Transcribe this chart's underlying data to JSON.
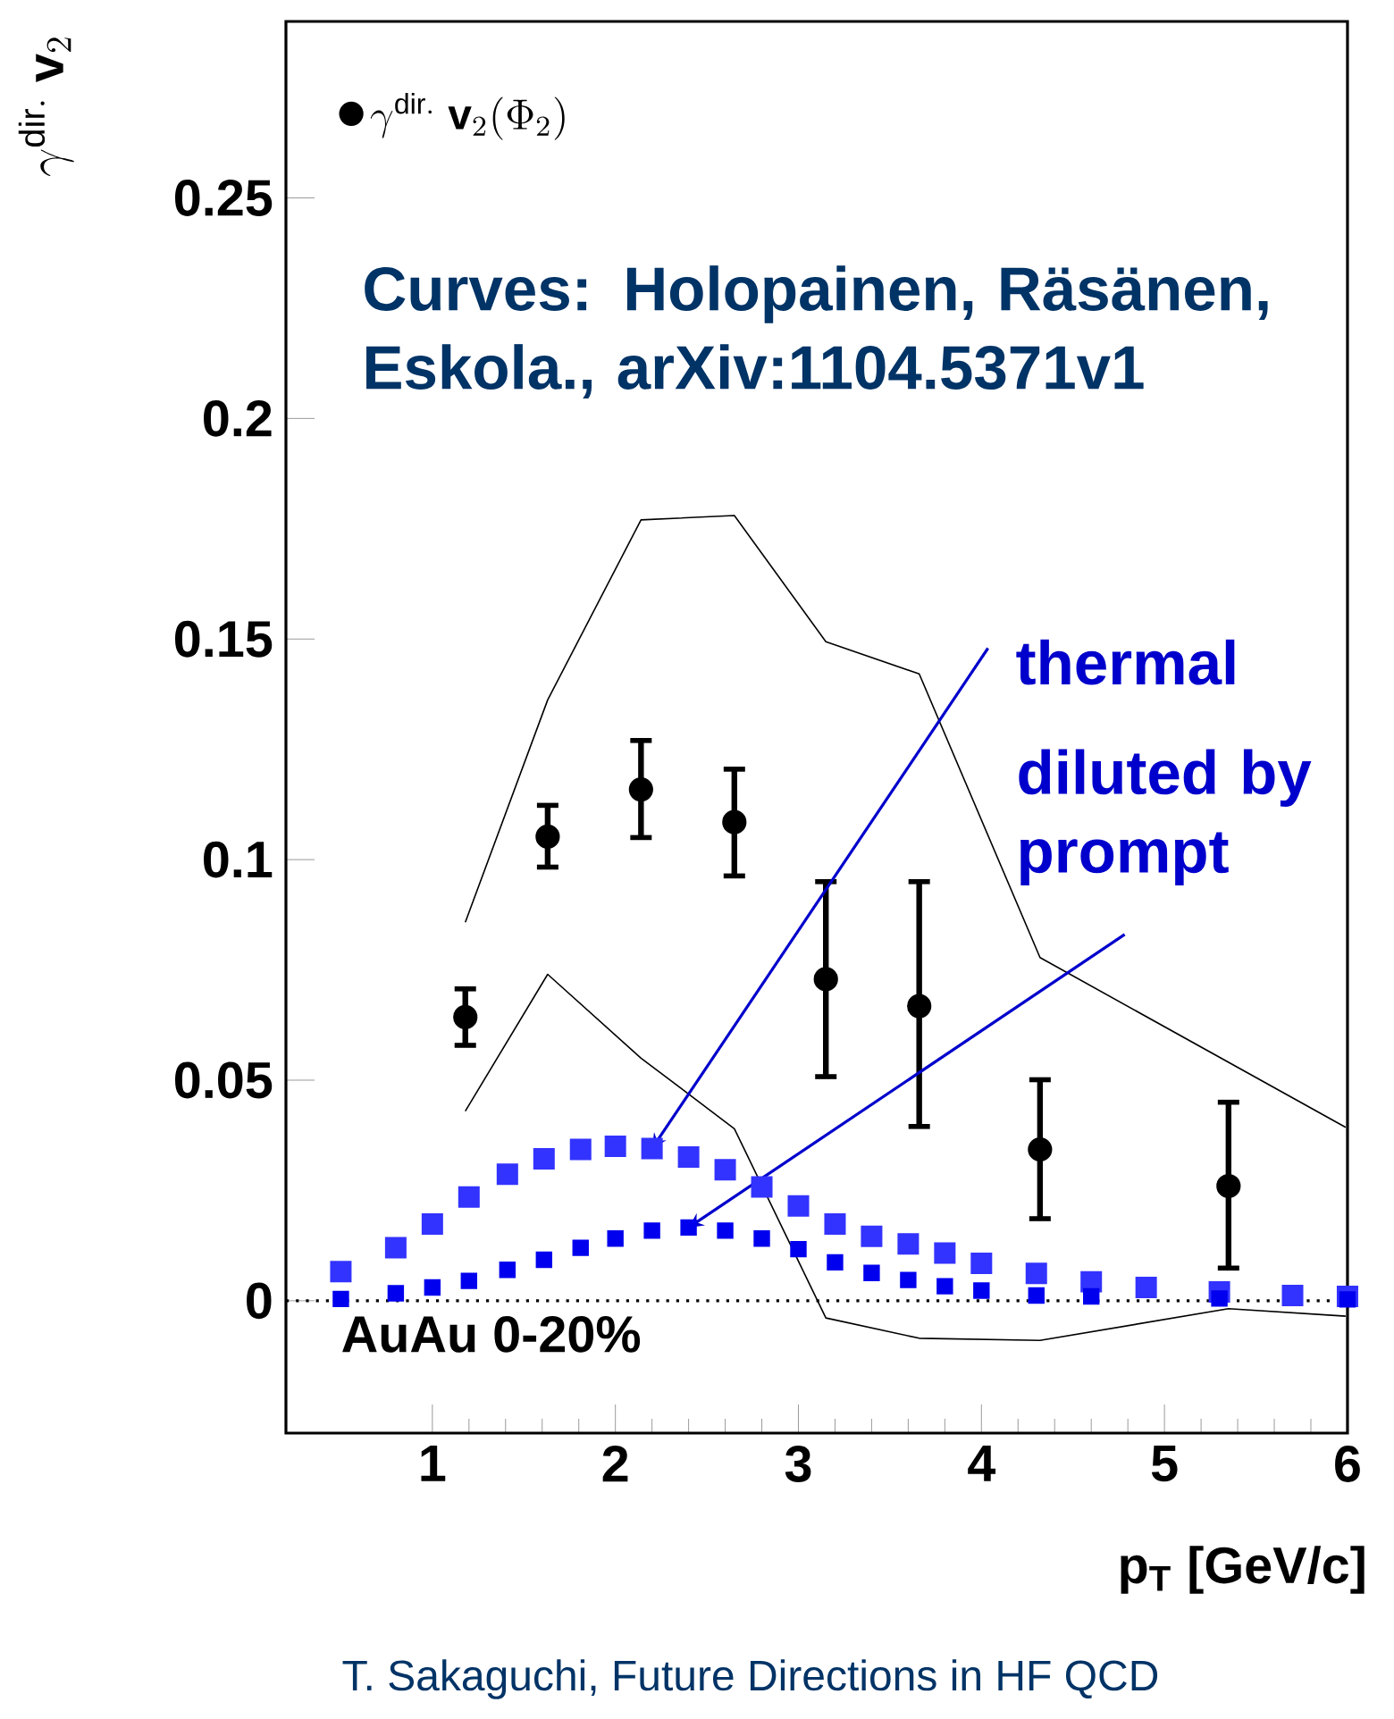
{
  "chart_data": {
    "type": "scatter",
    "ylabel": "\\gamma^{\\mathrm{dir.}}\\ \\mathbf{v}_{2}",
    "xlabel": "p$_{T}$ [GeV/c]",
    "xlim": [
      0.2,
      6
    ],
    "ylim": [
      -0.03,
      0.29
    ],
    "xticks": [
      1,
      2,
      3,
      4,
      5,
      6
    ],
    "yticks": [
      0,
      0.05,
      0.1,
      0.15,
      0.2,
      0.25
    ],
    "legend": "top left",
    "ref_lines": [
      {
        "axis": "y",
        "value": 0,
        "line_style": "dotted",
        "color": "#000000"
      }
    ],
    "annotations": [
      "Curves: Holopainen, Räsänen, Eskola., arXiv:1104.5371v1",
      "AuAu 0-20%",
      {
        "text": "thermal",
        "x": 2.2,
        "y": 0.0345
      },
      {
        "text": "diluted by prompt",
        "x": 2.4,
        "y": 0.0166
      },
      "T. Sakaguchi, Future Directions in HF QCD"
    ],
    "series": [
      {
        "name": "\\gamma^{\\mathrm{dir.}}\\ \\mathbf{v}_{2}(\\Phi_{2})",
        "marker": "circle",
        "color": "#000000",
        "x": [
          1.18,
          1.63,
          2.14,
          2.65,
          3.15,
          3.66,
          4.32,
          5.35
        ],
        "values": [
          0.0643,
          0.1052,
          0.1159,
          0.1085,
          0.0729,
          0.0668,
          0.0343,
          0.026
        ],
        "errors": [
          [
            0.0579,
            0.0707
          ],
          [
            0.0983,
            0.1123
          ],
          [
            0.105,
            0.127
          ],
          [
            0.0963,
            0.1205
          ],
          [
            0.0508,
            0.095
          ],
          [
            0.0395,
            0.095
          ],
          [
            0.0186,
            0.0501
          ],
          [
            0.0074,
            0.045
          ]
        ]
      },
      {
        "type": "line",
        "marker": "none",
        "color": "#000000",
        "x": [
          1.18,
          1.63,
          2.14,
          2.65,
          3.15,
          3.66,
          4.32,
          5.99
        ],
        "values": [
          0.0858,
          0.1362,
          0.177,
          0.178,
          0.1494,
          0.1421,
          0.0778,
          0.0393
        ]
      },
      {
        "type": "line",
        "marker": "none",
        "color": "#000000",
        "x": [
          1.18,
          1.63,
          2.14,
          2.65,
          3.15,
          3.66,
          4.32,
          5.35,
          5.99
        ],
        "values": [
          0.043,
          0.074,
          0.055,
          0.039,
          -0.0039,
          -0.0085,
          -0.009,
          -0.0018,
          -0.0035
        ]
      },
      {
        "marker": "square",
        "color": "#3333ff",
        "x": [
          0.5,
          0.8,
          1.0,
          1.2,
          1.41,
          1.61,
          1.81,
          2.0,
          2.2,
          2.4,
          2.6,
          2.8,
          3.0,
          3.2,
          3.4,
          3.6,
          3.8,
          4.0,
          4.3,
          4.6,
          4.9,
          5.3,
          5.7,
          6.0
        ],
        "values": [
          0.0066,
          0.012,
          0.0174,
          0.0235,
          0.0287,
          0.0322,
          0.0343,
          0.035,
          0.0345,
          0.0326,
          0.0297,
          0.0258,
          0.0215,
          0.0174,
          0.0146,
          0.0129,
          0.0108,
          0.0085,
          0.0062,
          0.0043,
          0.003,
          0.002,
          0.0012,
          0.001
        ]
      },
      {
        "marker": "square",
        "color": "#0000ee",
        "x": [
          0.5,
          0.8,
          1.0,
          1.2,
          1.41,
          1.61,
          1.81,
          2.0,
          2.2,
          2.4,
          2.6,
          2.8,
          3.0,
          3.2,
          3.4,
          3.6,
          3.8,
          4.0,
          4.3,
          4.6,
          5.3,
          6.0
        ],
        "values": [
          0.0004,
          0.0017,
          0.003,
          0.0045,
          0.007,
          0.0093,
          0.012,
          0.0141,
          0.0159,
          0.0166,
          0.0159,
          0.0141,
          0.0117,
          0.0087,
          0.0063,
          0.0047,
          0.0033,
          0.0023,
          0.0012,
          0.001,
          0.0005,
          0.0003
        ]
      }
    ]
  }
}
